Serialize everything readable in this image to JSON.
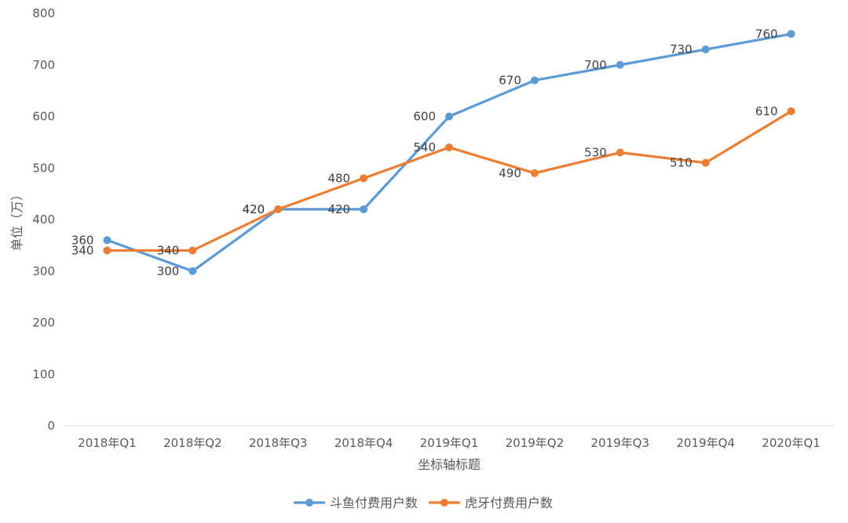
{
  "chart_data": {
    "type": "line",
    "title": "",
    "xlabel": "坐标轴标题",
    "ylabel": "单位（万）",
    "categories": [
      "2018年Q1",
      "2018年Q2",
      "2018年Q3",
      "2018年Q4",
      "2019年Q1",
      "2019年Q2",
      "2019年Q3",
      "2019年Q4",
      "2020年Q1"
    ],
    "ylim": [
      0,
      800
    ],
    "yticks": [
      0,
      100,
      200,
      300,
      400,
      500,
      600,
      700,
      800
    ],
    "grid": false,
    "legend_position": "bottom",
    "series": [
      {
        "name": "斗鱼付费用户数",
        "color": "#5B9BD5",
        "values": [
          360,
          300,
          420,
          420,
          600,
          670,
          700,
          730,
          760
        ]
      },
      {
        "name": "虎牙付费用户数",
        "color": "#ED7D31",
        "values": [
          340,
          340,
          420,
          480,
          540,
          490,
          530,
          510,
          610
        ]
      }
    ]
  }
}
